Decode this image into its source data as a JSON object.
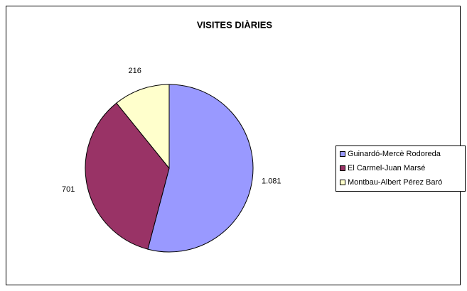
{
  "chart_data": {
    "type": "pie",
    "title": "VISITES DIÀRIES",
    "categories": [
      "Guinardó-Mercè Rodoreda",
      "El Carmel-Juan Marsé",
      "Montbau-Albert Pérez Baró"
    ],
    "values": [
      1081,
      701,
      216
    ],
    "value_labels": [
      "1.081",
      "701",
      "216"
    ],
    "colors": [
      "#9999ff",
      "#993366",
      "#ffffcc"
    ],
    "legend": "right"
  }
}
